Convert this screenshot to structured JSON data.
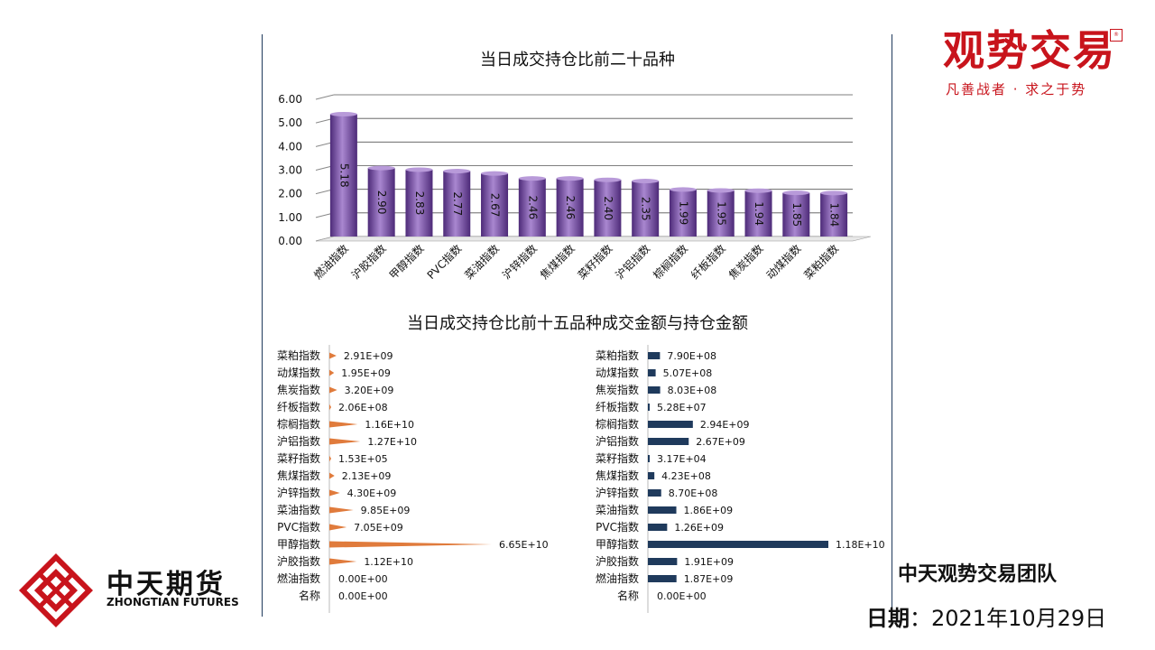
{
  "brand": {
    "title": "观势交易",
    "slogan": "凡善战者 · 求之于势",
    "seal": "®"
  },
  "company": {
    "name": "中天期货",
    "name_en": "ZHONGTIAN FUTURES"
  },
  "footer": {
    "team": "中天观势交易团队",
    "date_label": "日期",
    "date_sep": "：",
    "date_value": "2021年10月29日"
  },
  "colors": {
    "bar": "#7a4fa8",
    "cone": "#e07b3c",
    "navy": "#1f3a5c",
    "brand_red": "#c8141c"
  },
  "chart_data": [
    {
      "type": "bar",
      "title": "当日成交持仓比前二十品种",
      "categories": [
        "燃油指数",
        "沪胶指数",
        "甲醇指数",
        "PVC指数",
        "菜油指数",
        "沪锌指数",
        "焦煤指数",
        "菜籽指数",
        "沪铝指数",
        "棕榈指数",
        "纤板指数",
        "焦炭指数",
        "动煤指数",
        "菜粕指数"
      ],
      "values": [
        5.18,
        2.9,
        2.83,
        2.77,
        2.67,
        2.46,
        2.46,
        2.4,
        2.35,
        1.99,
        1.95,
        1.94,
        1.85,
        1.84
      ],
      "value_labels": [
        "5.18",
        "2.90",
        "2.83",
        "2.77",
        "2.67",
        "2.46",
        "2.46",
        "2.40",
        "2.35",
        "1.99",
        "1.95",
        "1.94",
        "1.85",
        "1.84"
      ],
      "yticks": [
        "0.00",
        "1.00",
        "2.00",
        "3.00",
        "4.00",
        "5.00",
        "6.00"
      ],
      "ylim": [
        0,
        6
      ],
      "grid": true
    },
    {
      "type": "bar",
      "title": "当日成交持仓比前十五品种成交金额与持仓金额",
      "orientation": "horizontal",
      "categories": [
        "菜粕指数",
        "动煤指数",
        "焦炭指数",
        "纤板指数",
        "棕榈指数",
        "沪铝指数",
        "菜籽指数",
        "焦煤指数",
        "沪锌指数",
        "菜油指数",
        "PVC指数",
        "甲醇指数",
        "沪胶指数",
        "燃油指数",
        "名称"
      ],
      "values": [
        2910000000.0,
        1950000000.0,
        3200000000.0,
        206000000.0,
        11600000000.0,
        12700000000.0,
        153000.0,
        2130000000.0,
        4300000000.0,
        9850000000.0,
        7050000000.0,
        66500000000.0,
        11200000000.0,
        0,
        0
      ],
      "value_labels": [
        "2.91E+09",
        "1.95E+09",
        "3.20E+09",
        "2.06E+08",
        "1.16E+10",
        "1.27E+10",
        "1.53E+05",
        "2.13E+09",
        "4.30E+09",
        "9.85E+09",
        "7.05E+09",
        "6.65E+10",
        "1.12E+10",
        "0.00E+00",
        "0.00E+00"
      ],
      "xlim": [
        0,
        66500000000.0
      ]
    },
    {
      "type": "bar",
      "orientation": "horizontal",
      "categories": [
        "菜粕指数",
        "动煤指数",
        "焦炭指数",
        "纤板指数",
        "棕榈指数",
        "沪铝指数",
        "菜籽指数",
        "焦煤指数",
        "沪锌指数",
        "菜油指数",
        "PVC指数",
        "甲醇指数",
        "沪胶指数",
        "燃油指数",
        "名称"
      ],
      "values": [
        790000000.0,
        507000000.0,
        803000000.0,
        52800000.0,
        2940000000.0,
        2670000000.0,
        31700.0,
        423000000.0,
        870000000.0,
        1860000000.0,
        1260000000.0,
        11800000000.0,
        1910000000.0,
        1870000000.0,
        0
      ],
      "value_labels": [
        "7.90E+08",
        "5.07E+08",
        "8.03E+08",
        "5.28E+07",
        "2.94E+09",
        "2.67E+09",
        "3.17E+04",
        "4.23E+08",
        "8.70E+08",
        "1.86E+09",
        "1.26E+09",
        "1.18E+10",
        "1.91E+09",
        "1.87E+09",
        "0.00E+00"
      ],
      "xlim": [
        0,
        11800000000.0
      ]
    }
  ]
}
